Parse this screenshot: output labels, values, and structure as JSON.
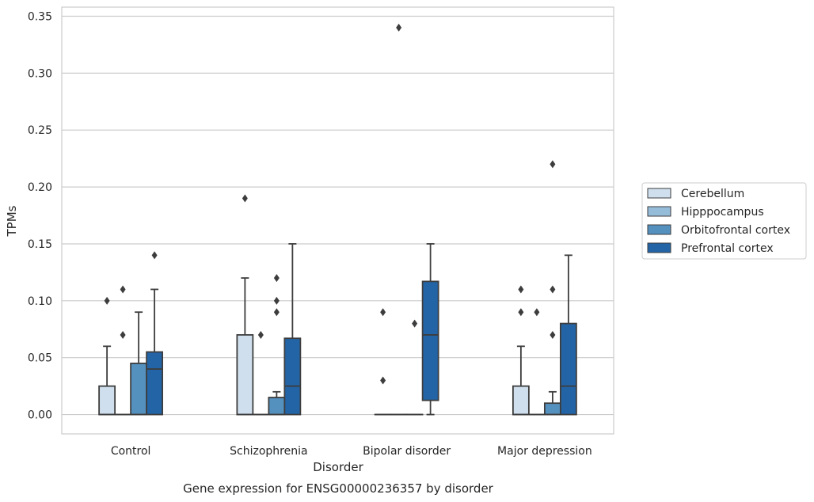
{
  "chart_data": {
    "type": "boxplot",
    "title": "Gene expression for ENSG00000236357 by disorder",
    "xlabel": "Disorder",
    "ylabel": "TPMs",
    "ylim": [
      -0.017,
      0.358
    ],
    "yticks": [
      "0.00",
      "0.05",
      "0.10",
      "0.15",
      "0.20",
      "0.25",
      "0.30",
      "0.35"
    ],
    "ytick_values": [
      0,
      0.05,
      0.1,
      0.15,
      0.2,
      0.25,
      0.3,
      0.35
    ],
    "grid": "horizontal",
    "legend_position": "right",
    "categories": [
      "Control",
      "Schizophrenia",
      "Bipolar disorder",
      "Major depression"
    ],
    "series": [
      {
        "name": "Cerebellum",
        "color": "#d0dfee",
        "boxes": [
          {
            "q1": 0,
            "median": 0,
            "q3": 0.025,
            "whisker_low": 0,
            "whisker_high": 0.06,
            "outliers": [
              0.1
            ]
          },
          {
            "q1": 0,
            "median": 0,
            "q3": 0.07,
            "whisker_low": 0,
            "whisker_high": 0.12,
            "outliers": [
              0.19
            ]
          },
          {
            "q1": 0,
            "median": 0,
            "q3": 0,
            "whisker_low": 0,
            "whisker_high": 0,
            "outliers": [
              0.03,
              0.09
            ]
          },
          {
            "q1": 0,
            "median": 0,
            "q3": 0.025,
            "whisker_low": 0,
            "whisker_high": 0.06,
            "outliers": [
              0.09,
              0.11
            ]
          }
        ]
      },
      {
        "name": "Hipppocampus",
        "color": "#95bcd9",
        "boxes": [
          {
            "q1": 0,
            "median": 0,
            "q3": 0,
            "whisker_low": 0,
            "whisker_high": 0,
            "outliers": [
              0.07,
              0.11
            ]
          },
          {
            "q1": 0,
            "median": 0,
            "q3": 0,
            "whisker_low": 0,
            "whisker_high": 0,
            "outliers": [
              0.07
            ]
          },
          {
            "q1": 0,
            "median": 0,
            "q3": 0,
            "whisker_low": 0,
            "whisker_high": 0,
            "outliers": [
              0.34
            ]
          },
          {
            "q1": 0,
            "median": 0,
            "q3": 0,
            "whisker_low": 0,
            "whisker_high": 0,
            "outliers": [
              0.09
            ]
          }
        ]
      },
      {
        "name": "Orbitofrontal cortex",
        "color": "#5591bf",
        "boxes": [
          {
            "q1": 0,
            "median": 0,
            "q3": 0.045,
            "whisker_low": 0,
            "whisker_high": 0.09,
            "outliers": []
          },
          {
            "q1": 0,
            "median": 0,
            "q3": 0.015,
            "whisker_low": 0,
            "whisker_high": 0.02,
            "outliers": [
              0.09,
              0.1,
              0.12
            ]
          },
          {
            "q1": 0,
            "median": 0,
            "q3": 0,
            "whisker_low": 0,
            "whisker_high": 0,
            "outliers": [
              0.08
            ]
          },
          {
            "q1": 0,
            "median": 0,
            "q3": 0.01,
            "whisker_low": 0,
            "whisker_high": 0.02,
            "outliers": [
              0.07,
              0.11,
              0.22
            ]
          }
        ]
      },
      {
        "name": "Prefrontal cortex",
        "color": "#2364a7",
        "boxes": [
          {
            "q1": 0,
            "median": 0.04,
            "q3": 0.055,
            "whisker_low": 0,
            "whisker_high": 0.11,
            "outliers": [
              0.14
            ]
          },
          {
            "q1": 0,
            "median": 0.025,
            "q3": 0.067,
            "whisker_low": 0,
            "whisker_high": 0.15,
            "outliers": []
          },
          {
            "q1": 0.0125,
            "median": 0.07,
            "q3": 0.117,
            "whisker_low": 0,
            "whisker_high": 0.15,
            "outliers": []
          },
          {
            "q1": 0,
            "median": 0.025,
            "q3": 0.08,
            "whisker_low": 0,
            "whisker_high": 0.14,
            "outliers": []
          }
        ]
      }
    ]
  }
}
